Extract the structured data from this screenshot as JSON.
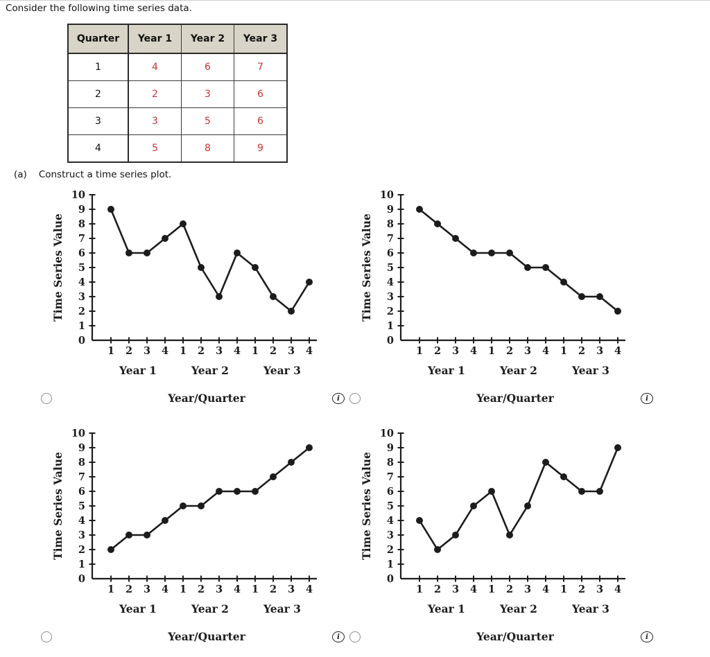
{
  "page": {
    "intro": "Consider the following time series data.",
    "part_a_label": "(a)",
    "part_a_text": "Construct a time series plot."
  },
  "icons": {
    "info": "i"
  },
  "colors": {
    "table_header_bg": "#d8d4c7",
    "table_value_red": "#cc3333",
    "plot_ink": "#1c1c1c"
  },
  "table": {
    "headers": [
      "Quarter",
      "Year 1",
      "Year 2",
      "Year 3"
    ],
    "rows": [
      [
        "1",
        "4",
        "6",
        "7"
      ],
      [
        "2",
        "2",
        "3",
        "6"
      ],
      [
        "3",
        "3",
        "5",
        "6"
      ],
      [
        "4",
        "5",
        "8",
        "9"
      ]
    ]
  },
  "chart_data": [
    {
      "type": "line",
      "title": "",
      "xlabel": "Year/Quarter",
      "ylabel": "Time Series Value",
      "ylim": [
        0,
        10
      ],
      "yticks": [
        0,
        1,
        2,
        3,
        4,
        5,
        6,
        7,
        8,
        9,
        10
      ],
      "x": [
        1,
        2,
        3,
        4,
        5,
        6,
        7,
        8,
        9,
        10,
        11,
        12
      ],
      "x_tick_labels": [
        "1",
        "2",
        "3",
        "4",
        "1",
        "2",
        "3",
        "4",
        "1",
        "2",
        "3",
        "4"
      ],
      "group_labels": [
        "Year 1",
        "Year 2",
        "Year 3"
      ],
      "values": [
        9,
        6,
        6,
        7,
        8,
        5,
        3,
        6,
        5,
        3,
        2,
        4
      ],
      "grid": false,
      "legend": false
    },
    {
      "type": "line",
      "title": "",
      "xlabel": "Year/Quarter",
      "ylabel": "Time Series Value",
      "ylim": [
        0,
        10
      ],
      "yticks": [
        0,
        1,
        2,
        3,
        4,
        5,
        6,
        7,
        8,
        9,
        10
      ],
      "x": [
        1,
        2,
        3,
        4,
        5,
        6,
        7,
        8,
        9,
        10,
        11,
        12
      ],
      "x_tick_labels": [
        "1",
        "2",
        "3",
        "4",
        "1",
        "2",
        "3",
        "4",
        "1",
        "2",
        "3",
        "4"
      ],
      "group_labels": [
        "Year 1",
        "Year 2",
        "Year 3"
      ],
      "values": [
        9,
        8,
        7,
        6,
        6,
        6,
        5,
        5,
        4,
        3,
        3,
        2
      ],
      "grid": false,
      "legend": false
    },
    {
      "type": "line",
      "title": "",
      "xlabel": "Year/Quarter",
      "ylabel": "Time Series Value",
      "ylim": [
        0,
        10
      ],
      "yticks": [
        0,
        1,
        2,
        3,
        4,
        5,
        6,
        7,
        8,
        9,
        10
      ],
      "x": [
        1,
        2,
        3,
        4,
        5,
        6,
        7,
        8,
        9,
        10,
        11,
        12
      ],
      "x_tick_labels": [
        "1",
        "2",
        "3",
        "4",
        "1",
        "2",
        "3",
        "4",
        "1",
        "2",
        "3",
        "4"
      ],
      "group_labels": [
        "Year 1",
        "Year 2",
        "Year 3"
      ],
      "values": [
        2,
        3,
        3,
        4,
        5,
        5,
        6,
        6,
        6,
        7,
        8,
        9
      ],
      "grid": false,
      "legend": false
    },
    {
      "type": "line",
      "title": "",
      "xlabel": "Year/Quarter",
      "ylabel": "Time Series Value",
      "ylim": [
        0,
        10
      ],
      "yticks": [
        0,
        1,
        2,
        3,
        4,
        5,
        6,
        7,
        8,
        9,
        10
      ],
      "x": [
        1,
        2,
        3,
        4,
        5,
        6,
        7,
        8,
        9,
        10,
        11,
        12
      ],
      "x_tick_labels": [
        "1",
        "2",
        "3",
        "4",
        "1",
        "2",
        "3",
        "4",
        "1",
        "2",
        "3",
        "4"
      ],
      "group_labels": [
        "Year 1",
        "Year 2",
        "Year 3"
      ],
      "values": [
        4,
        2,
        3,
        5,
        6,
        3,
        5,
        8,
        7,
        6,
        6,
        9
      ],
      "grid": false,
      "legend": false
    }
  ]
}
